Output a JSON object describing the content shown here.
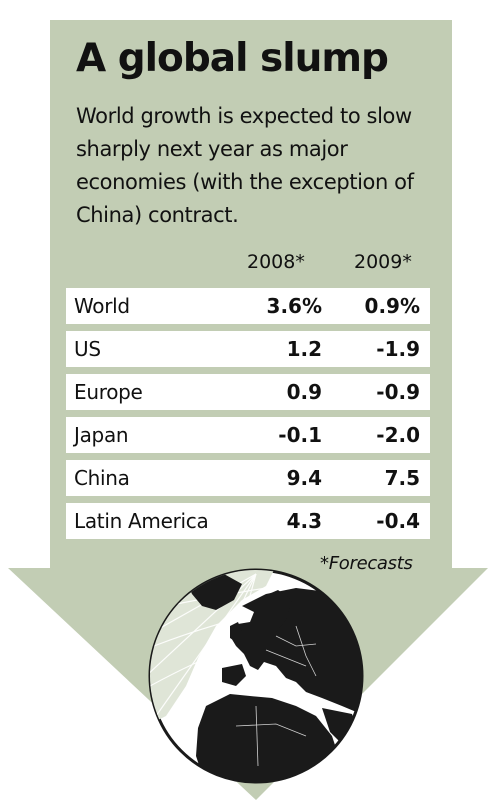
{
  "colors": {
    "arrow": "#c2cdb4",
    "row_bg": "#ffffff",
    "text": "#111111",
    "globe_land": "#1a1a1a",
    "globe_sea": "#ffffff",
    "globe_pole": "#dfe5d7"
  },
  "icons": {
    "background": "down-arrow-shape",
    "globe": "globe-icon"
  },
  "chart_data": {
    "type": "table",
    "title": "A global slump",
    "subtitle": "World growth is expected to slow sharply next year as major economies (with the exception of China) contract.",
    "columns": [
      "2008*",
      "2009*"
    ],
    "rows": [
      {
        "label": "World",
        "values": [
          "3.6%",
          "0.9%"
        ]
      },
      {
        "label": "US",
        "values": [
          "1.2",
          "-1.9"
        ]
      },
      {
        "label": "Europe",
        "values": [
          "0.9",
          "-0.9"
        ]
      },
      {
        "label": "Japan",
        "values": [
          "-0.1",
          "-2.0"
        ]
      },
      {
        "label": "China",
        "values": [
          "9.4",
          "7.5"
        ]
      },
      {
        "label": "Latin America",
        "values": [
          "4.3",
          "-0.4"
        ]
      }
    ],
    "footnote": "*Forecasts"
  }
}
